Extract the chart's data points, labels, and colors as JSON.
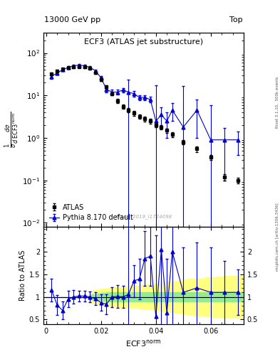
{
  "title_top": "ECF3 (ATLAS jet substructure)",
  "header_left": "13000 GeV pp",
  "header_right": "Top",
  "ylabel_ratio": "Ratio to ATLAS",
  "xlabel": "ECF3$^{n}$orm",
  "watermark": "ATLAS_2019_I1724098",
  "right_label": "Rivet 3.1.10,  500k events",
  "right_label2": "mcplots.cern.ch [arXiv:1306.3436]",
  "atlas_x": [
    0.002,
    0.004,
    0.006,
    0.008,
    0.01,
    0.012,
    0.014,
    0.016,
    0.018,
    0.02,
    0.022,
    0.024,
    0.026,
    0.028,
    0.03,
    0.032,
    0.034,
    0.036,
    0.038,
    0.04,
    0.042,
    0.044,
    0.046,
    0.05,
    0.055,
    0.06,
    0.065,
    0.07
  ],
  "atlas_y": [
    32,
    38,
    42,
    45,
    47,
    48,
    47,
    44,
    35,
    24,
    16,
    11,
    7.5,
    5.5,
    4.5,
    3.8,
    3.2,
    2.8,
    2.5,
    2.0,
    1.8,
    1.5,
    1.2,
    0.8,
    0.55,
    0.35,
    0.12,
    0.1
  ],
  "atlas_yerr": [
    2.5,
    2.5,
    2.5,
    2.5,
    2.5,
    2.5,
    2.5,
    2.5,
    2.5,
    2.0,
    1.5,
    1.0,
    0.8,
    0.6,
    0.5,
    0.45,
    0.4,
    0.35,
    0.3,
    0.25,
    0.22,
    0.18,
    0.15,
    0.1,
    0.08,
    0.05,
    0.02,
    0.015
  ],
  "pythia_x": [
    0.002,
    0.004,
    0.006,
    0.008,
    0.01,
    0.012,
    0.014,
    0.016,
    0.018,
    0.02,
    0.022,
    0.024,
    0.026,
    0.028,
    0.03,
    0.032,
    0.034,
    0.036,
    0.038,
    0.04,
    0.042,
    0.044,
    0.046,
    0.05,
    0.055,
    0.06,
    0.065,
    0.07
  ],
  "pythia_y": [
    28,
    34,
    40,
    46,
    50,
    52,
    50,
    46,
    38,
    26,
    14,
    12,
    12,
    13.5,
    12,
    11,
    9,
    9,
    8,
    2.5,
    3.5,
    2.5,
    4.5,
    1.8,
    4.5,
    0.9,
    0.9,
    0.9
  ],
  "pythia_yerr": [
    3,
    3,
    3,
    3,
    3,
    3,
    3,
    3,
    3,
    2.5,
    2,
    1.5,
    1.5,
    1.5,
    12,
    1.5,
    1.2,
    1.2,
    1.2,
    15,
    1.8,
    1.5,
    2.0,
    15,
    3.5,
    5,
    0.8,
    0.5
  ],
  "ratio_x": [
    0.002,
    0.004,
    0.006,
    0.008,
    0.01,
    0.012,
    0.014,
    0.016,
    0.018,
    0.02,
    0.022,
    0.024,
    0.026,
    0.028,
    0.03,
    0.032,
    0.034,
    0.036,
    0.038,
    0.04,
    0.042,
    0.044,
    0.046,
    0.05,
    0.055,
    0.06,
    0.065,
    0.07
  ],
  "ratio_y": [
    1.15,
    0.82,
    0.7,
    0.95,
    1.0,
    1.02,
    1.02,
    1.0,
    0.96,
    0.87,
    0.84,
    1.0,
    1.01,
    1.0,
    1.05,
    1.35,
    1.4,
    1.85,
    1.9,
    0.57,
    2.05,
    0.65,
    2.0,
    1.1,
    1.2,
    1.1,
    1.1,
    1.1
  ],
  "ratio_yerr": [
    0.25,
    0.22,
    0.2,
    0.18,
    0.15,
    0.12,
    0.12,
    0.12,
    0.14,
    0.18,
    0.22,
    0.22,
    0.25,
    0.25,
    3.5,
    0.35,
    0.45,
    0.6,
    0.65,
    1.8,
    1.8,
    1.2,
    1.8,
    1.0,
    1.0,
    1.0,
    0.7,
    0.5
  ],
  "green_band_x": [
    0.0,
    0.01,
    0.012,
    0.016,
    0.018,
    0.02,
    0.022,
    0.024,
    0.026,
    0.028,
    0.03,
    0.032,
    0.034,
    0.036,
    0.038,
    0.04,
    0.042,
    0.044,
    0.046,
    0.05,
    0.052,
    0.054,
    0.058,
    0.06,
    0.062,
    0.065,
    0.068,
    0.072
  ],
  "green_band_lo": [
    1.0,
    1.0,
    1.0,
    0.95,
    0.93,
    0.91,
    0.9,
    0.9,
    0.9,
    0.9,
    0.9,
    0.9,
    0.9,
    0.9,
    0.9,
    0.9,
    0.9,
    0.9,
    0.9,
    0.9,
    0.9,
    0.9,
    0.9,
    0.9,
    0.9,
    0.9,
    0.9,
    0.9
  ],
  "green_band_hi": [
    1.0,
    1.0,
    1.0,
    1.05,
    1.07,
    1.09,
    1.1,
    1.1,
    1.1,
    1.1,
    1.1,
    1.1,
    1.1,
    1.1,
    1.1,
    1.1,
    1.1,
    1.1,
    1.1,
    1.1,
    1.1,
    1.1,
    1.1,
    1.1,
    1.1,
    1.1,
    1.1,
    1.1
  ],
  "yellow_band_x": [
    0.0,
    0.01,
    0.012,
    0.016,
    0.018,
    0.02,
    0.022,
    0.024,
    0.026,
    0.028,
    0.03,
    0.032,
    0.034,
    0.036,
    0.038,
    0.04,
    0.042,
    0.044,
    0.046,
    0.05,
    0.052,
    0.054,
    0.058,
    0.06,
    0.062,
    0.065,
    0.068,
    0.072
  ],
  "yellow_band_lo": [
    1.0,
    1.0,
    1.0,
    0.86,
    0.84,
    0.82,
    0.8,
    0.79,
    0.78,
    0.77,
    0.76,
    0.75,
    0.74,
    0.73,
    0.72,
    0.7,
    0.68,
    0.66,
    0.64,
    0.62,
    0.6,
    0.59,
    0.57,
    0.56,
    0.55,
    0.54,
    0.53,
    0.52
  ],
  "yellow_band_hi": [
    1.0,
    1.0,
    1.0,
    1.14,
    1.16,
    1.18,
    1.2,
    1.21,
    1.22,
    1.23,
    1.24,
    1.25,
    1.26,
    1.27,
    1.28,
    1.3,
    1.32,
    1.34,
    1.36,
    1.38,
    1.4,
    1.41,
    1.43,
    1.44,
    1.45,
    1.46,
    1.47,
    1.48
  ],
  "xlim": [
    -0.001,
    0.072
  ],
  "ylim_main": [
    0.008,
    300
  ],
  "ylim_ratio": [
    0.4,
    2.55
  ],
  "atlas_color": "black",
  "pythia_color": "#0000cc",
  "fig_bg": "#ffffff"
}
